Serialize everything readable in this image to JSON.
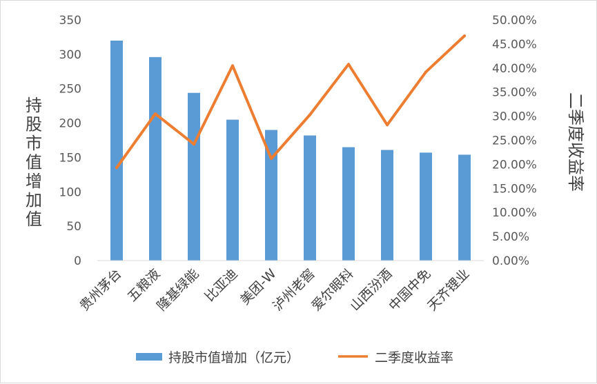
{
  "chart_data": {
    "type": "bar",
    "categories": [
      "贵州茅台",
      "五粮液",
      "隆基绿能",
      "比亚迪",
      "美团-W",
      "泸州老窖",
      "爱尔眼科",
      "山西汾酒",
      "中国中免",
      "天齐锂业"
    ],
    "series": [
      {
        "name": "持股市值增加（亿元）",
        "type": "bar",
        "axis": "left",
        "color": "#5b9bd5",
        "values": [
          320,
          296,
          244,
          205,
          190,
          182,
          165,
          161,
          157,
          154
        ]
      },
      {
        "name": "二季度收益率",
        "type": "line",
        "axis": "right",
        "color": "#ed7d31",
        "values": [
          0.193,
          0.305,
          0.242,
          0.405,
          0.212,
          0.303,
          0.408,
          0.282,
          0.392,
          0.467
        ]
      }
    ],
    "ylabel": "持股市值增加值",
    "y2label": "二季度收益率",
    "ylim": [
      0,
      350
    ],
    "y2lim": [
      0,
      0.5
    ],
    "yticks": [
      "0",
      "50",
      "100",
      "150",
      "200",
      "250",
      "300",
      "350"
    ],
    "y2ticks": [
      "0.00%",
      "5.00%",
      "10.00%",
      "15.00%",
      "20.00%",
      "25.00%",
      "30.00%",
      "35.00%",
      "40.00%",
      "45.00%",
      "50.00%"
    ],
    "grid": false,
    "legend": "bottom"
  }
}
